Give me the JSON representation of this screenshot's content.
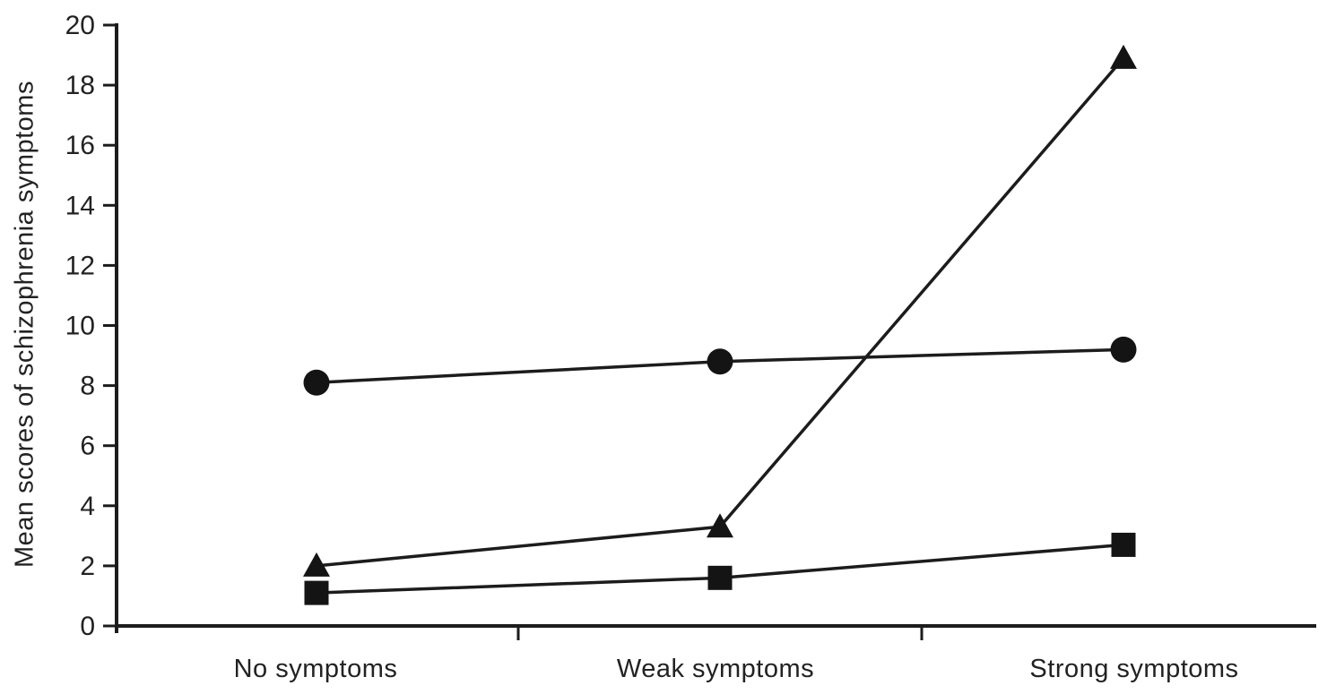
{
  "chart_data": {
    "type": "line",
    "title": "",
    "xlabel": "",
    "ylabel": "Mean scores of schizophrenia symptoms",
    "categories": [
      "No symptoms",
      "Weak symptoms",
      "Strong symptoms"
    ],
    "series": [
      {
        "name": "circle-series",
        "marker": "circle",
        "values": [
          8.1,
          8.8,
          9.2
        ]
      },
      {
        "name": "triangle-series",
        "marker": "triangle",
        "values": [
          2.0,
          3.3,
          18.9
        ]
      },
      {
        "name": "square-series",
        "marker": "square",
        "values": [
          1.1,
          1.6,
          2.7
        ]
      }
    ],
    "ylim": [
      0,
      20
    ],
    "yticks": [
      0,
      2,
      4,
      6,
      8,
      10,
      12,
      14,
      16,
      18,
      20
    ],
    "grid": false,
    "legend": false,
    "colors": {
      "line": "#1c1c1c",
      "marker": "#141414",
      "axis": "#1c1c1c",
      "text": "#222222",
      "background": "#ffffff"
    }
  }
}
